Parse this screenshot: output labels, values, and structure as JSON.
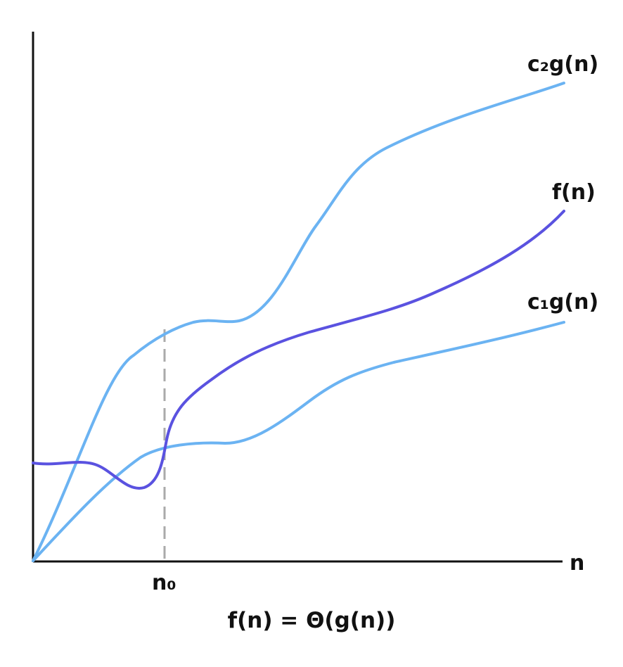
{
  "diagram": {
    "curve_labels": {
      "upper": "c₂g(n)",
      "middle": "f(n)",
      "lower": "c₁g(n)"
    },
    "axis": {
      "x_label": "n",
      "marker_label": "n₀"
    },
    "caption": "f(n) = Θ(g(n))",
    "colors": {
      "bound_curves": "#6bb3f2",
      "function_curve": "#5a52e0",
      "axes": "#111111",
      "dashed_guide": "#aaaaaa"
    }
  }
}
